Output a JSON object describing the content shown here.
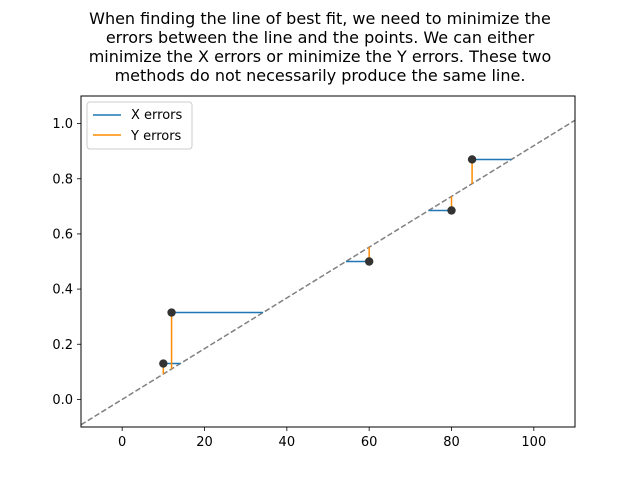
{
  "chart_data": {
    "type": "scatter",
    "title_lines": [
      "When finding the line of best fit, we need to minimize the",
      "errors between the line and the points. We can either",
      "minimize the X errors or minimize the Y errors. These two",
      "methods do not necessarily produce the same line."
    ],
    "xlim": [
      -10,
      110
    ],
    "ylim": [
      -0.1,
      1.1
    ],
    "x_ticks": [
      0,
      20,
      40,
      60,
      80,
      100
    ],
    "y_ticks": [
      0.0,
      0.2,
      0.4,
      0.6,
      0.8,
      1.0
    ],
    "x_tick_labels": [
      "0",
      "20",
      "40",
      "60",
      "80",
      "100"
    ],
    "y_tick_labels": [
      "0.0",
      "0.2",
      "0.4",
      "0.6",
      "0.8",
      "1.0"
    ],
    "fit_line": {
      "slope": 0.0092,
      "intercept": 0.0,
      "style": "dashed",
      "color": "#808080"
    },
    "points": [
      {
        "x": 10,
        "y": 0.13
      },
      {
        "x": 12,
        "y": 0.315
      },
      {
        "x": 60,
        "y": 0.5
      },
      {
        "x": 80,
        "y": 0.685
      },
      {
        "x": 85,
        "y": 0.87
      }
    ],
    "series": [
      {
        "name": "X errors",
        "color": "#1f77b4"
      },
      {
        "name": "Y errors",
        "color": "#ff8c00"
      }
    ],
    "grid": false,
    "legend_position": "top-left",
    "point_color": "#333333"
  }
}
